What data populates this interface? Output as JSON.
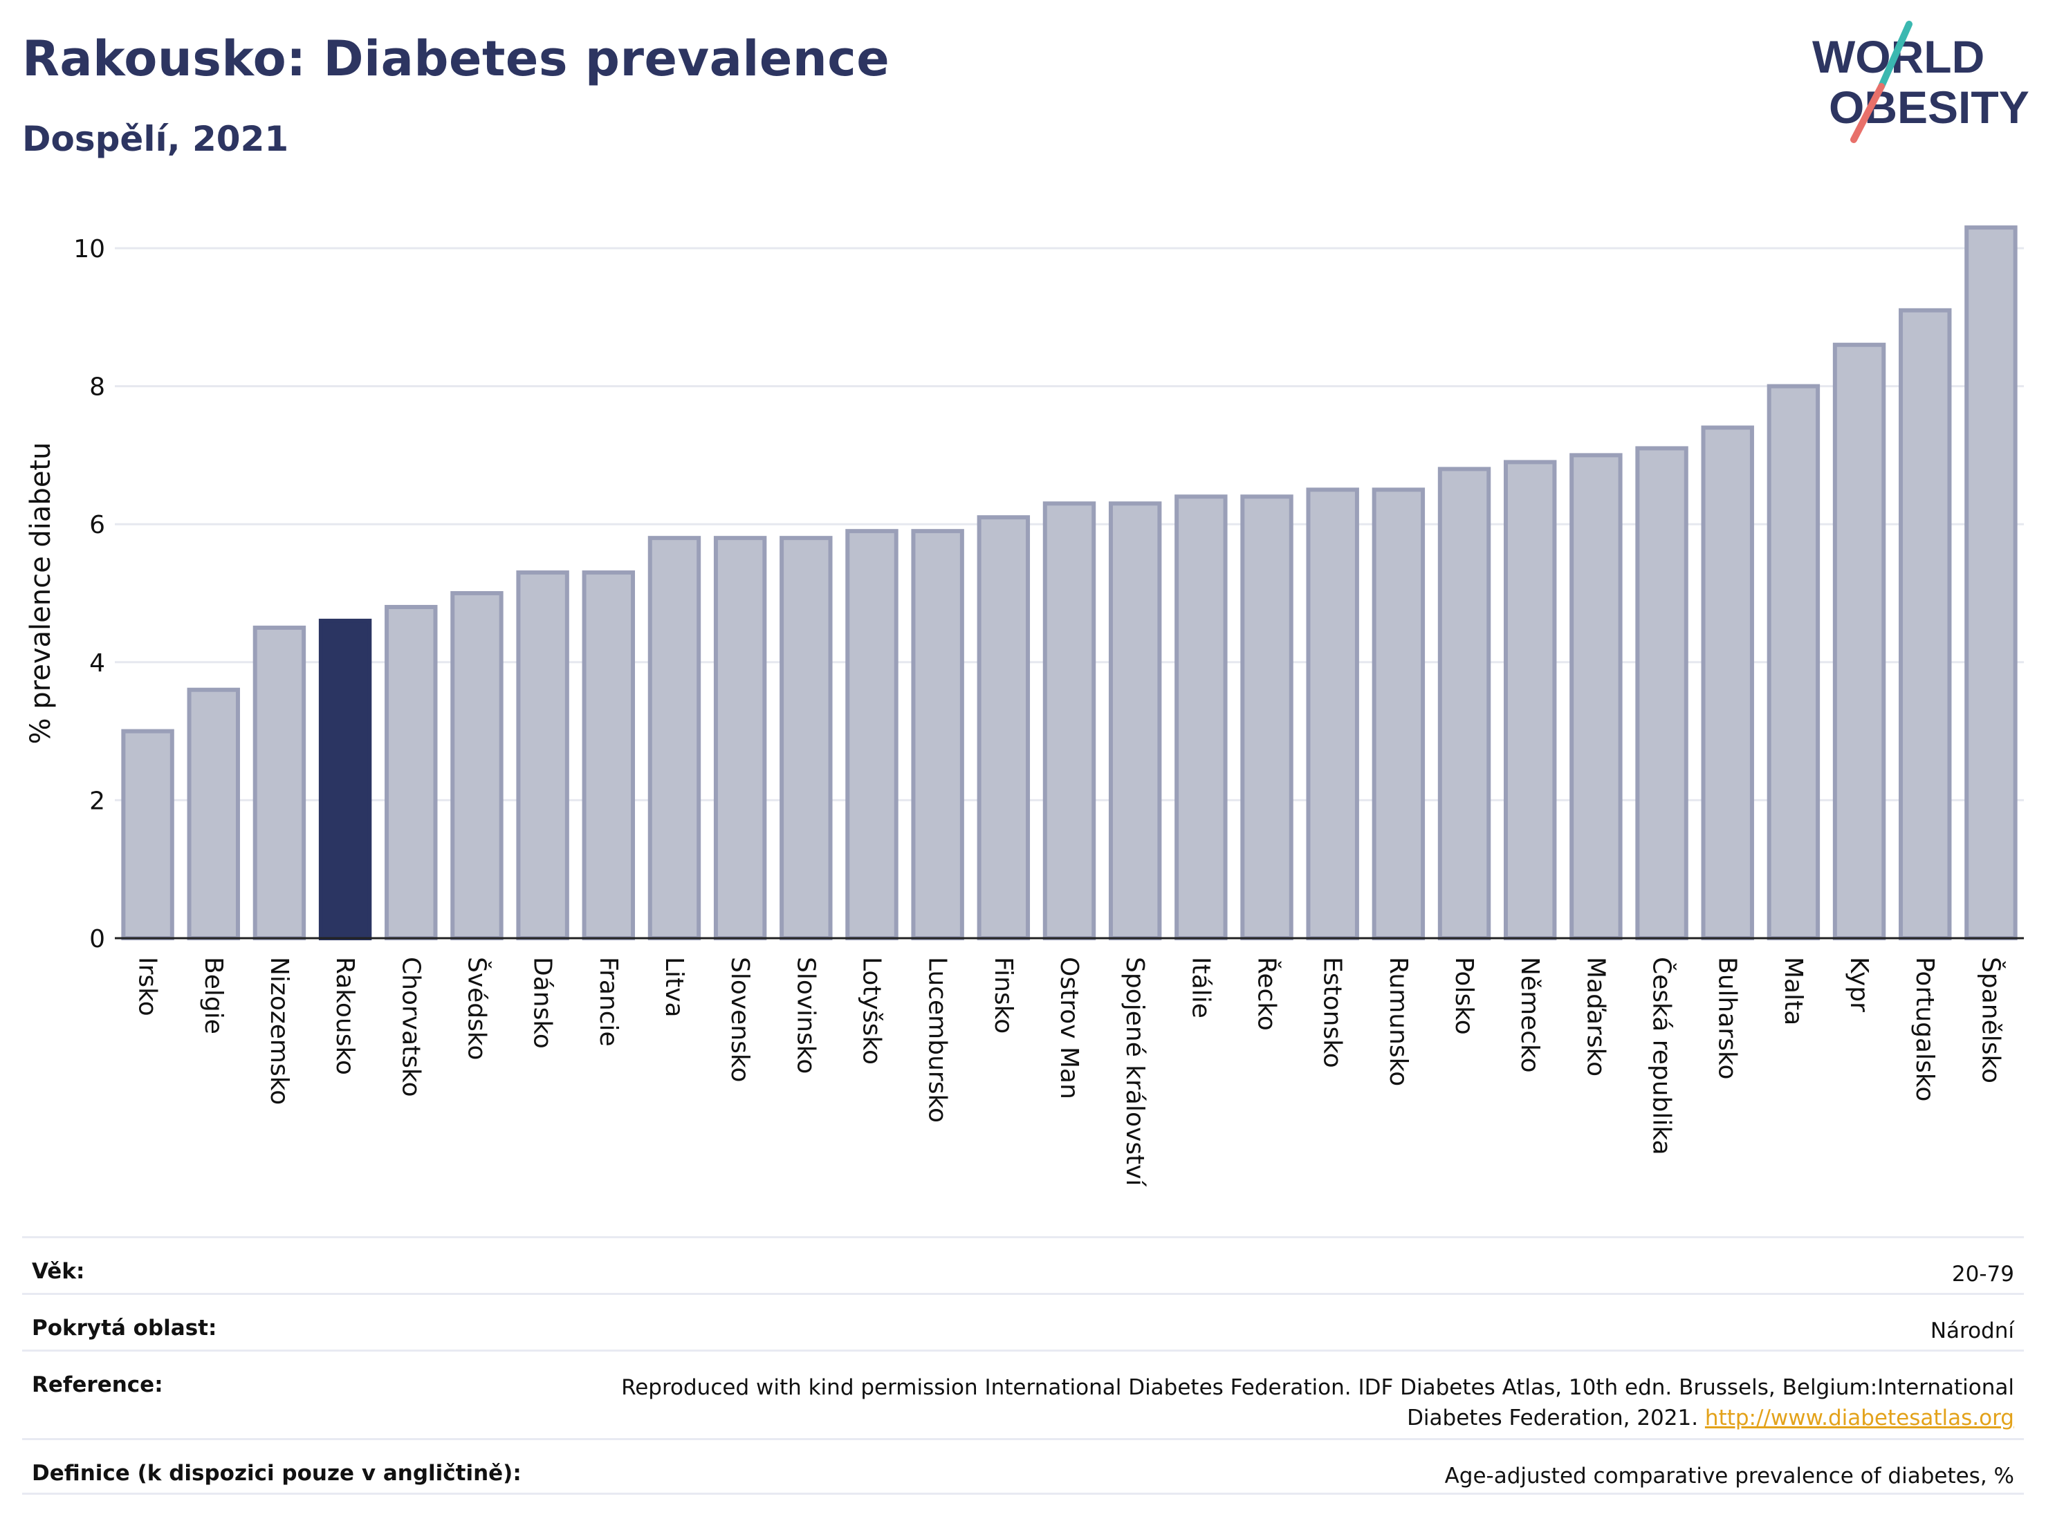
{
  "title": "Rakousko: Diabetes prevalence",
  "subtitle": "Dospělí, 2021",
  "logo": {
    "line1": "WORLD",
    "line2": "OBESITY"
  },
  "colors": {
    "highlight": "#2b3562",
    "bar": "#bcc0ce",
    "bar_border": "#9a9fb8",
    "title": "#2d3561",
    "link": "#e3a21a",
    "logo_teal": "#3bb8b0",
    "logo_red": "#e8706a"
  },
  "chart_data": {
    "type": "bar",
    "ylabel": "% prevalence diabetu",
    "xlabel": "",
    "ylim": [
      0,
      10.5
    ],
    "yticks": [
      0,
      2,
      4,
      6,
      8,
      10
    ],
    "grid": true,
    "highlight": "Rakousko",
    "categories": [
      "Irsko",
      "Belgie",
      "Nizozemsko",
      "Rakousko",
      "Chorvatsko",
      "Švédsko",
      "Dánsko",
      "Francie",
      "Litva",
      "Slovensko",
      "Slovinsko",
      "Lotyšsko",
      "Lucembursko",
      "Finsko",
      "Ostrov Man",
      "Spojené království",
      "Itálie",
      "Řecko",
      "Estonsko",
      "Rumunsko",
      "Polsko",
      "Německo",
      "Maďarsko",
      "Česká republika",
      "Bulharsko",
      "Malta",
      "Kypr",
      "Portugalsko",
      "Španělsko"
    ],
    "values": [
      3.0,
      3.6,
      4.5,
      4.6,
      4.8,
      5.0,
      5.3,
      5.3,
      5.8,
      5.8,
      5.8,
      5.9,
      5.9,
      6.1,
      6.3,
      6.3,
      6.4,
      6.4,
      6.5,
      6.5,
      6.8,
      6.9,
      7.0,
      7.1,
      7.4,
      8.0,
      8.6,
      9.1,
      10.3
    ]
  },
  "meta": [
    {
      "label": "Věk:",
      "value": "20-79"
    },
    {
      "label": "Pokrytá oblast:",
      "value": "Národní"
    },
    {
      "label": "Reference:",
      "value": "Reproduced with kind permission International Diabetes Federation.  IDF Diabetes Atlas, 10th edn. Brussels, Belgium:International Diabetes Federation, 2021.",
      "link": "http://www.diabetesatlas.org"
    },
    {
      "label": "Definice (k dispozici pouze v angličtině):",
      "value": "Age-adjusted comparative prevalence of diabetes, %"
    }
  ]
}
